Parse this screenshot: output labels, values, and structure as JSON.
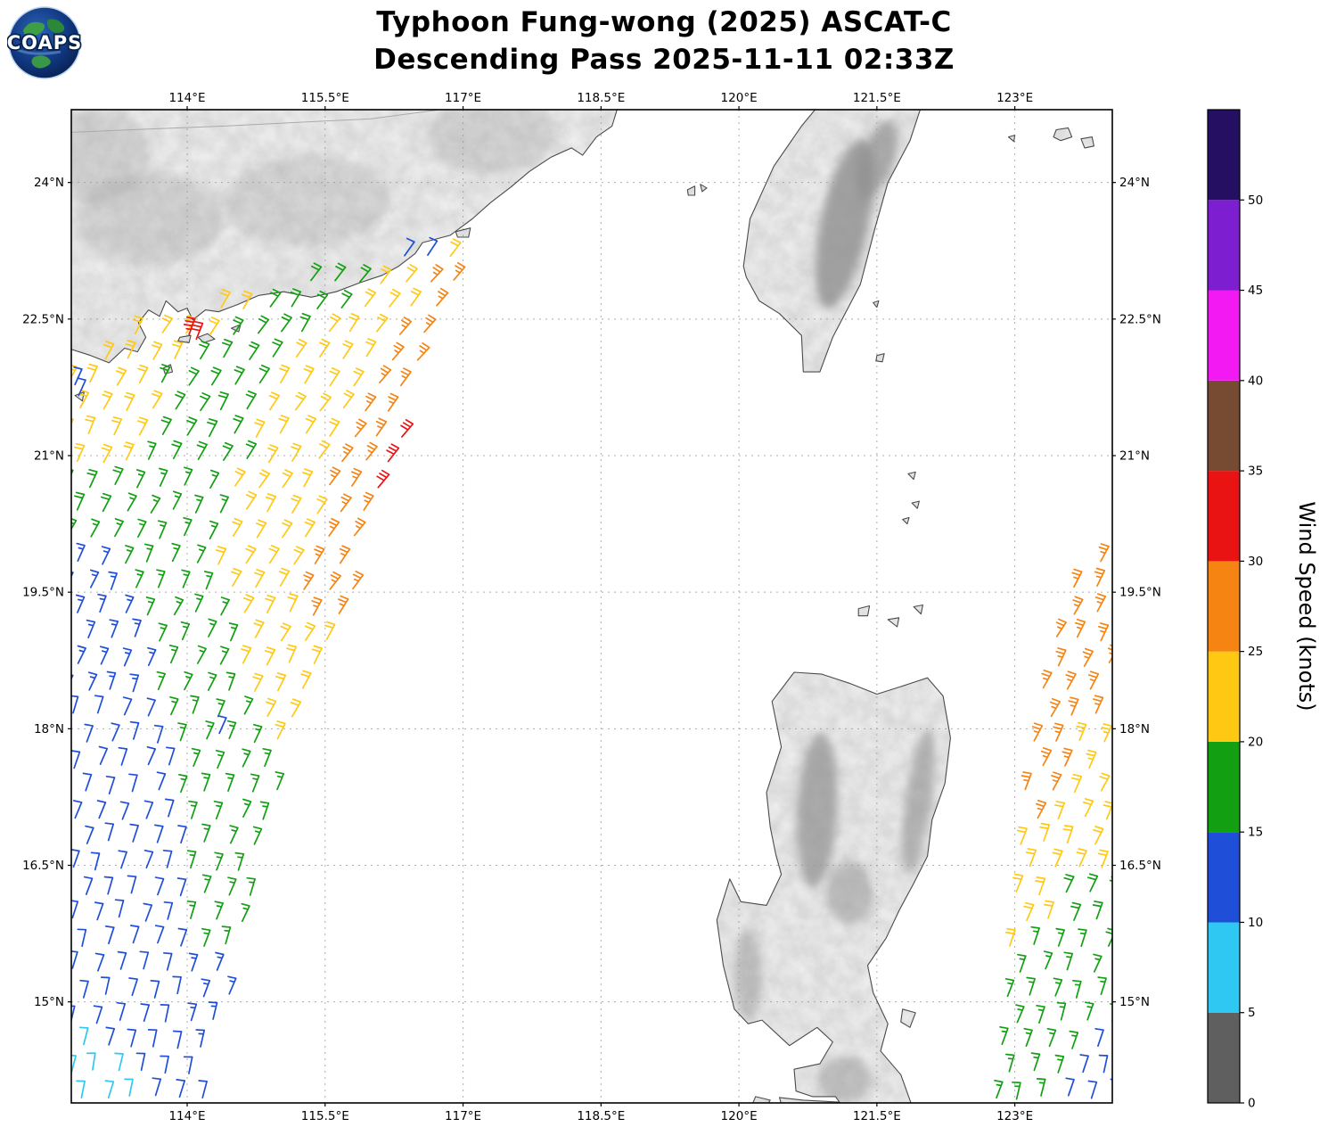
{
  "header": {
    "title_line1": "Typhoon Fung-wong (2025) ASCAT-C",
    "title_line2": "Descending Pass 2025-11-11 02:33Z",
    "logo_text": "COAPS"
  },
  "chart_data": {
    "type": "wind_barb_map",
    "title": "Typhoon Fung-wong (2025) ASCAT-C",
    "subtitle": "Descending Pass 2025-11-11 02:33Z",
    "projection": "lat-lon",
    "lon_range": [
      112.74,
      124.06
    ],
    "lat_range": [
      13.89,
      24.8
    ],
    "grid": true,
    "x_ticks": [
      {
        "label": "114°E",
        "lon": 114
      },
      {
        "label": "115.5°E",
        "lon": 115.5
      },
      {
        "label": "117°E",
        "lon": 117
      },
      {
        "label": "118.5°E",
        "lon": 118.5
      },
      {
        "label": "120°E",
        "lon": 120
      },
      {
        "label": "121.5°E",
        "lon": 121.5
      },
      {
        "label": "123°E",
        "lon": 123
      }
    ],
    "y_ticks": [
      {
        "label": "24°N",
        "lat": 24
      },
      {
        "label": "22.5°N",
        "lat": 22.5
      },
      {
        "label": "21°N",
        "lat": 21
      },
      {
        "label": "19.5°N",
        "lat": 19.5
      },
      {
        "label": "18°N",
        "lat": 18
      },
      {
        "label": "16.5°N",
        "lat": 16.5
      },
      {
        "label": "15°N",
        "lat": 15
      }
    ],
    "colorbar": {
      "label": "Wind Speed (knots)",
      "units": "knots",
      "min": 0,
      "max": 55,
      "ticks": [
        {
          "label": "0",
          "value": 0
        },
        {
          "label": "5",
          "value": 5
        },
        {
          "label": "10",
          "value": 10
        },
        {
          "label": "15",
          "value": 15
        },
        {
          "label": "20",
          "value": 20
        },
        {
          "label": "25",
          "value": 25
        },
        {
          "label": "30",
          "value": 30
        },
        {
          "label": "35",
          "value": 35
        },
        {
          "label": "40",
          "value": 40
        },
        {
          "label": "45",
          "value": 45
        },
        {
          "label": "50",
          "value": 50
        }
      ],
      "segments": [
        {
          "from": 0,
          "to": 5,
          "color": "#5f5f5f"
        },
        {
          "from": 5,
          "to": 10,
          "color": "#2fc8f2"
        },
        {
          "from": 10,
          "to": 15,
          "color": "#1f4fd8"
        },
        {
          "from": 15,
          "to": 20,
          "color": "#12a012"
        },
        {
          "from": 20,
          "to": 25,
          "color": "#ffc913"
        },
        {
          "from": 25,
          "to": 30,
          "color": "#f58413"
        },
        {
          "from": 30,
          "to": 35,
          "color": "#ea1313"
        },
        {
          "from": 35,
          "to": 40,
          "color": "#774a32"
        },
        {
          "from": 40,
          "to": 45,
          "color": "#f319f3"
        },
        {
          "from": 45,
          "to": 50,
          "color": "#7d1fd0"
        },
        {
          "from": 50,
          "to": 55,
          "color": "#250f63"
        }
      ]
    },
    "barb_convention": {
      "full_barb_kt": 10,
      "half_barb_kt": 5
    },
    "swaths": [
      {
        "name": "left-swath",
        "lat_min": 13.95,
        "lat_max": 23.35,
        "row_step": 0.28,
        "col_step": 0.26,
        "west_edge": [
          [
            13.95,
            112.6
          ],
          [
            21.9,
            112.7
          ],
          [
            22.3,
            113.35
          ],
          [
            22.5,
            113.75
          ],
          [
            22.7,
            114.5
          ],
          [
            22.9,
            115.3
          ],
          [
            23.1,
            116.0
          ],
          [
            23.35,
            116.6
          ]
        ],
        "east_edge": [
          [
            13.95,
            114.2
          ],
          [
            15.0,
            114.45
          ],
          [
            16.5,
            114.78
          ],
          [
            18.0,
            115.18
          ],
          [
            19.5,
            115.8
          ],
          [
            21.0,
            116.28
          ],
          [
            22.5,
            116.78
          ],
          [
            23.35,
            117.1
          ]
        ],
        "samples": [
          [
            23.2,
            116.1,
            18,
            35
          ],
          [
            23.15,
            116.45,
            12,
            32
          ],
          [
            23.1,
            116.8,
            22,
            38
          ],
          [
            22.85,
            114.9,
            21,
            32
          ],
          [
            22.85,
            115.7,
            18,
            35
          ],
          [
            22.8,
            116.4,
            22,
            38
          ],
          [
            22.8,
            116.85,
            26,
            40
          ],
          [
            22.5,
            113.9,
            21,
            30
          ],
          [
            22.5,
            115.0,
            18,
            33
          ],
          [
            22.45,
            116.0,
            22,
            36
          ],
          [
            22.4,
            116.6,
            26,
            40
          ],
          [
            22.1,
            113.2,
            21,
            28
          ],
          [
            22.1,
            114.5,
            18,
            31
          ],
          [
            22.05,
            115.7,
            22,
            35
          ],
          [
            22.0,
            116.3,
            27,
            39
          ],
          [
            21.65,
            113.1,
            21,
            27
          ],
          [
            21.65,
            114.2,
            18,
            30
          ],
          [
            21.6,
            115.45,
            22,
            34
          ],
          [
            21.6,
            116.1,
            27,
            38
          ],
          [
            21.1,
            113.0,
            20,
            26
          ],
          [
            21.1,
            114.1,
            18,
            29
          ],
          [
            21.1,
            115.3,
            22,
            33
          ],
          [
            21.1,
            115.95,
            27,
            37
          ],
          [
            21.1,
            116.25,
            32,
            40
          ],
          [
            20.6,
            112.9,
            18,
            25
          ],
          [
            20.6,
            113.8,
            17,
            28
          ],
          [
            20.6,
            115.1,
            22,
            32
          ],
          [
            20.6,
            115.75,
            27,
            36
          ],
          [
            20.75,
            116.1,
            31,
            38
          ],
          [
            20.1,
            113.5,
            17,
            26
          ],
          [
            20.1,
            115.0,
            21,
            31
          ],
          [
            20.1,
            115.7,
            26,
            35
          ],
          [
            19.6,
            112.85,
            13,
            23
          ],
          [
            19.6,
            113.8,
            16,
            26
          ],
          [
            19.6,
            114.9,
            21,
            30
          ],
          [
            19.6,
            115.6,
            26,
            34
          ],
          [
            19.1,
            113.0,
            13,
            22
          ],
          [
            19.1,
            113.9,
            16,
            26
          ],
          [
            19.1,
            115.1,
            21,
            29
          ],
          [
            19.35,
            115.5,
            26,
            33
          ],
          [
            18.65,
            113.15,
            13,
            22
          ],
          [
            18.65,
            114.1,
            16,
            25
          ],
          [
            18.65,
            115.0,
            21,
            28
          ],
          [
            18.15,
            113.2,
            12,
            21
          ],
          [
            18.15,
            114.2,
            16,
            24
          ],
          [
            18.1,
            115.0,
            21,
            27
          ],
          [
            17.65,
            113.3,
            12,
            20
          ],
          [
            17.65,
            114.5,
            16,
            24
          ],
          [
            17.15,
            113.3,
            12,
            20
          ],
          [
            17.15,
            114.5,
            16,
            23
          ],
          [
            16.65,
            113.4,
            12,
            19
          ],
          [
            16.65,
            114.5,
            15,
            22
          ],
          [
            16.15,
            113.4,
            12,
            18
          ],
          [
            16.15,
            114.5,
            15,
            21
          ],
          [
            15.65,
            113.5,
            11,
            17
          ],
          [
            15.65,
            114.45,
            15,
            20
          ],
          [
            15.15,
            113.5,
            11,
            16
          ],
          [
            15.15,
            114.45,
            14,
            19
          ],
          [
            14.65,
            113.5,
            11,
            15
          ],
          [
            14.65,
            114.45,
            14,
            17
          ],
          [
            14.15,
            113.1,
            8,
            13
          ],
          [
            14.15,
            113.9,
            11,
            14
          ]
        ]
      },
      {
        "name": "right-swath",
        "lat_min": 13.95,
        "lat_max": 19.95,
        "row_step": 0.28,
        "col_step": 0.26,
        "west_edge": [
          [
            13.95,
            122.78
          ],
          [
            15.0,
            122.9
          ],
          [
            16.0,
            123.0
          ],
          [
            17.0,
            123.1
          ],
          [
            18.0,
            123.22
          ],
          [
            18.8,
            123.38
          ],
          [
            19.3,
            123.52
          ],
          [
            19.95,
            123.88
          ]
        ],
        "east_edge": [
          [
            13.95,
            124.2
          ],
          [
            19.95,
            124.2
          ]
        ],
        "samples": [
          [
            19.6,
            123.95,
            27,
            30
          ],
          [
            19.0,
            123.7,
            27,
            29
          ],
          [
            18.4,
            123.6,
            27,
            28
          ],
          [
            18.4,
            124.0,
            26,
            28
          ],
          [
            17.8,
            123.45,
            26,
            27
          ],
          [
            17.8,
            123.9,
            23,
            26
          ],
          [
            17.2,
            123.15,
            26,
            25
          ],
          [
            17.2,
            123.75,
            22,
            25
          ],
          [
            16.6,
            123.4,
            22,
            23
          ],
          [
            16.6,
            123.95,
            21,
            23
          ],
          [
            16.0,
            123.15,
            21,
            22
          ],
          [
            16.0,
            123.75,
            18,
            22
          ],
          [
            15.4,
            123.4,
            17,
            21
          ],
          [
            14.8,
            123.4,
            16,
            19
          ],
          [
            14.2,
            123.2,
            15,
            17
          ],
          [
            14.15,
            123.95,
            12,
            15
          ]
        ]
      }
    ],
    "extra_barbs": [
      [
        22.33,
        114.02,
        33,
        20
      ],
      [
        22.28,
        114.1,
        32,
        22
      ],
      [
        21.78,
        112.78,
        12,
        24
      ],
      [
        21.66,
        112.82,
        12,
        24
      ],
      [
        17.95,
        114.35,
        12,
        24
      ]
    ]
  }
}
